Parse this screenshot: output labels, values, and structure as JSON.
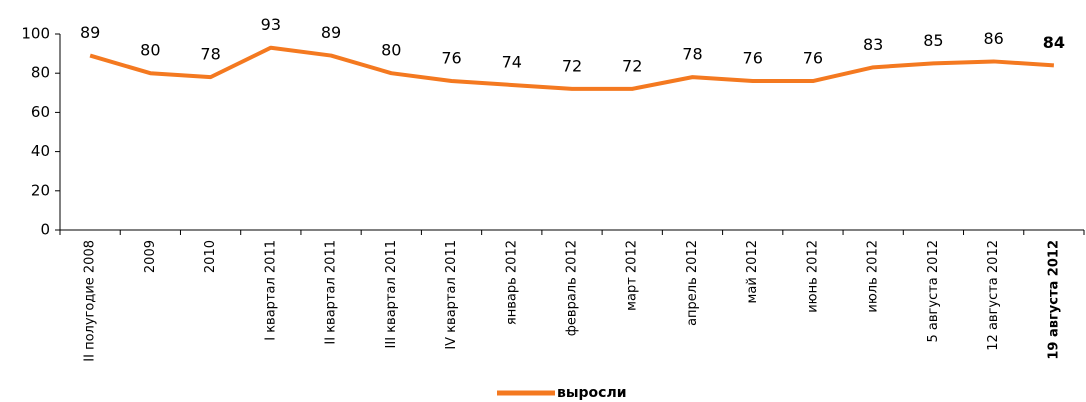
{
  "chart_data": {
    "type": "line",
    "categories": [
      "II полугодие 2008",
      "2009",
      "2010",
      "I квартал 2011",
      "II квартал 2011",
      "III квартал 2011",
      "IV квартал 2011",
      "январь 2012",
      "февраль 2012",
      "март 2012",
      "апрель 2012",
      "май 2012",
      "июнь 2012",
      "июль 2012",
      "5 августа 2012",
      "12 августа 2012",
      "19 августа 2012"
    ],
    "series": [
      {
        "name": "выросли",
        "color": "#f47920",
        "values": [
          89,
          80,
          78,
          93,
          89,
          80,
          76,
          74,
          72,
          72,
          78,
          76,
          76,
          83,
          85,
          86,
          84
        ]
      }
    ],
    "ylim": [
      0,
      100
    ],
    "yticks": [
      0,
      20,
      40,
      60,
      80,
      100
    ],
    "grid": false,
    "legend": "bottom",
    "bold_index": 16
  }
}
